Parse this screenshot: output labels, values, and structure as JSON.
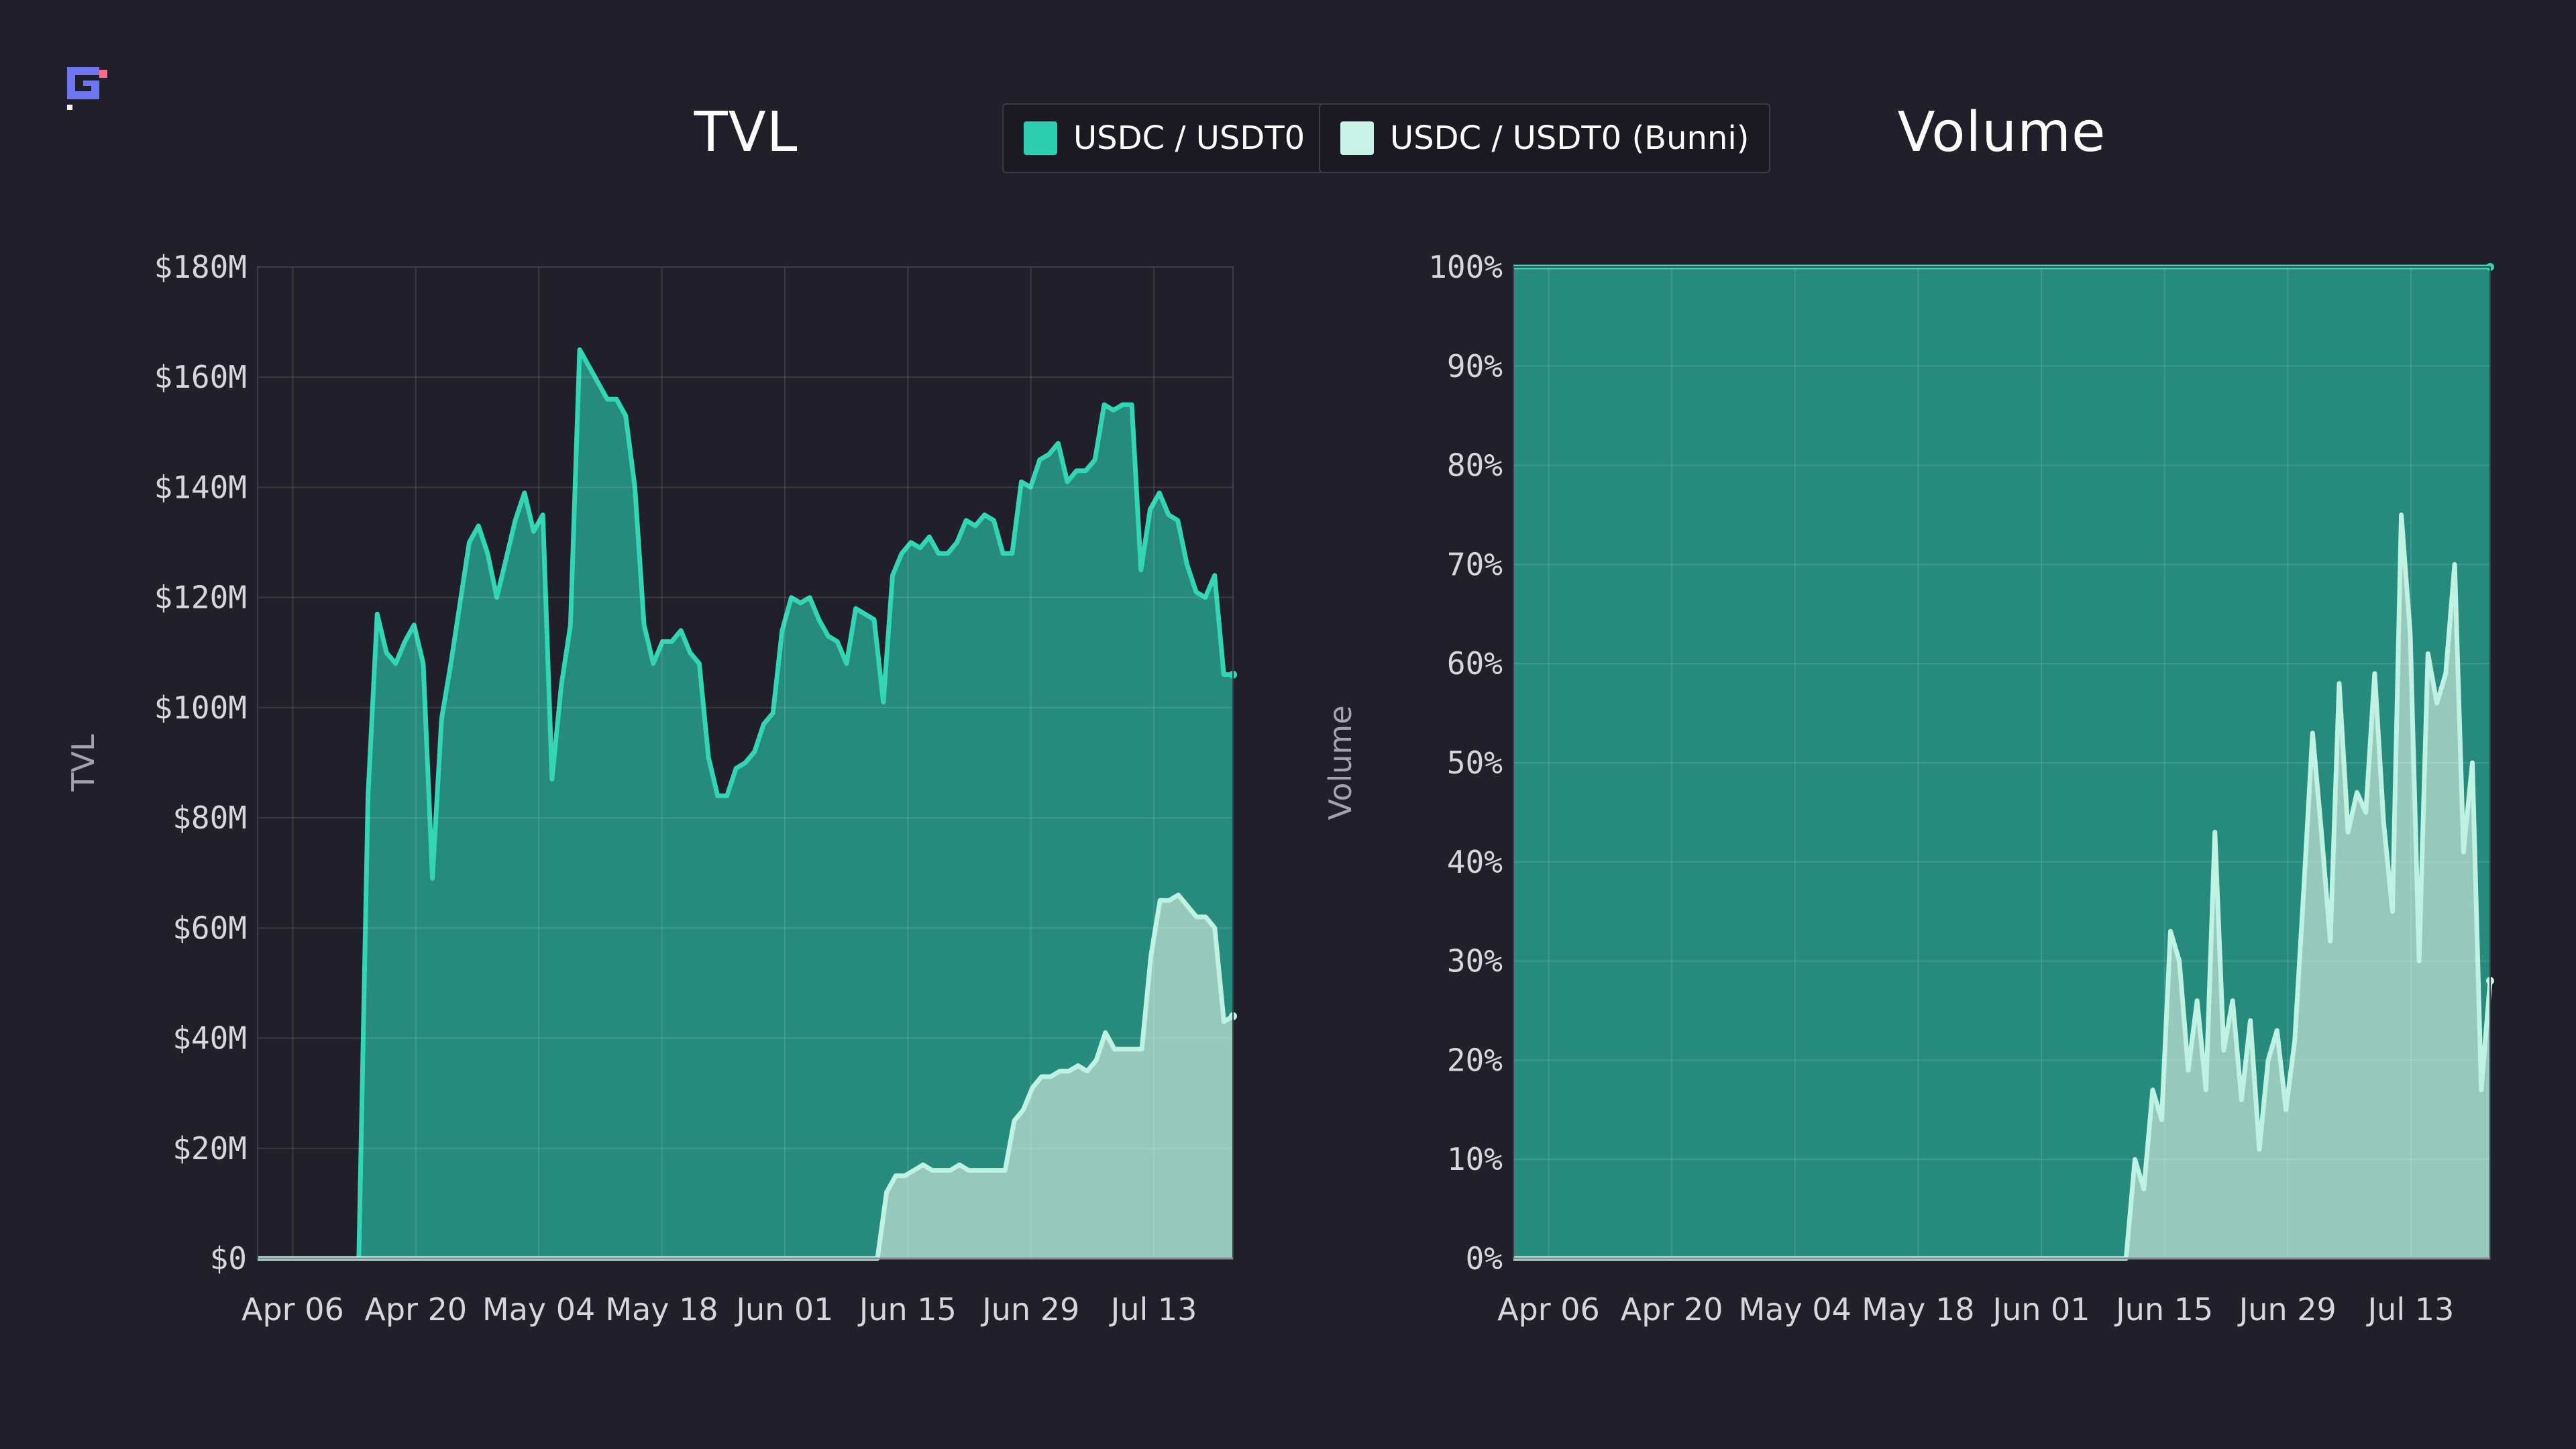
{
  "legend": [
    {
      "label": "USDC / USDT0",
      "color": "#2ecfb1"
    },
    {
      "label": "USDC / USDT0 (Bunni)",
      "color": "#c8f3e6"
    }
  ],
  "colors": {
    "primary_line": "#33d6b4",
    "primary_fill": "#268a7d",
    "secondary_line": "#bff2e3",
    "secondary_fill": "#9fcdc0",
    "grid": "#3e3d4c",
    "logo_blue": "#6d76f0",
    "logo_pink": "#ff6b8b"
  },
  "chart_data": [
    {
      "type": "area",
      "title": "TVL",
      "ylabel": "TVL",
      "xlabel": "",
      "ylim": [
        0,
        180
      ],
      "y_unit": "$M",
      "y_ticks": [
        "$0",
        "$20M",
        "$40M",
        "$60M",
        "$80M",
        "$100M",
        "$120M",
        "$140M",
        "$160M",
        "$180M"
      ],
      "x_ticks": [
        "Apr 06",
        "Apr 20",
        "May 04",
        "May 18",
        "Jun 01",
        "Jun 15",
        "Jun 29",
        "Jul 13"
      ],
      "x_range": [
        "Apr 02",
        "Jul 22"
      ],
      "grid": true,
      "series": [
        {
          "name": "USDC / USDT0",
          "stacked": false,
          "values": [
            0,
            0,
            0,
            0,
            0,
            0,
            0,
            0,
            0,
            0,
            0,
            0,
            84,
            117,
            110,
            108,
            112,
            115,
            108,
            69,
            98,
            108,
            119,
            130,
            133,
            128,
            120,
            127,
            134,
            139,
            132,
            135,
            87,
            104,
            115,
            165,
            162,
            159,
            156,
            156,
            153,
            140,
            115,
            108,
            112,
            112,
            114,
            110,
            108,
            91,
            84,
            84,
            89,
            90,
            92,
            97,
            99,
            114,
            120,
            119,
            120,
            116,
            113,
            112,
            108,
            118,
            117,
            116,
            101,
            124,
            128,
            130,
            129,
            131,
            128,
            128,
            130,
            134,
            133,
            135,
            134,
            128,
            128,
            141,
            140,
            145,
            146,
            148,
            141,
            143,
            143,
            145,
            155,
            154,
            155,
            155,
            125,
            136,
            139,
            135,
            134,
            126,
            121,
            120,
            124,
            106,
            106
          ]
        },
        {
          "name": "USDC / USDT0 (Bunni)",
          "stacked": false,
          "values": [
            0,
            0,
            0,
            0,
            0,
            0,
            0,
            0,
            0,
            0,
            0,
            0,
            0,
            0,
            0,
            0,
            0,
            0,
            0,
            0,
            0,
            0,
            0,
            0,
            0,
            0,
            0,
            0,
            0,
            0,
            0,
            0,
            0,
            0,
            0,
            0,
            0,
            0,
            0,
            0,
            0,
            0,
            0,
            0,
            0,
            0,
            0,
            0,
            0,
            0,
            0,
            0,
            0,
            0,
            0,
            0,
            0,
            0,
            0,
            0,
            0,
            0,
            0,
            0,
            0,
            0,
            0,
            0,
            0,
            12,
            15,
            15,
            16,
            17,
            16,
            16,
            16,
            17,
            16,
            16,
            16,
            16,
            16,
            25,
            27,
            31,
            33,
            33,
            34,
            34,
            35,
            34,
            36,
            41,
            38,
            38,
            38,
            38,
            55,
            65,
            65,
            66,
            64,
            62,
            62,
            60,
            43,
            44
          ]
        }
      ]
    },
    {
      "type": "area",
      "title": "Volume",
      "ylabel": "Volume",
      "xlabel": "",
      "ylim": [
        0,
        100
      ],
      "y_unit": "%",
      "y_ticks": [
        "0%",
        "10%",
        "20%",
        "30%",
        "40%",
        "50%",
        "60%",
        "70%",
        "80%",
        "90%",
        "100%"
      ],
      "x_ticks": [
        "Apr 06",
        "Apr 20",
        "May 04",
        "May 18",
        "Jun 01",
        "Jun 15",
        "Jun 29",
        "Jul 13"
      ],
      "x_range": [
        "Apr 02",
        "Jul 22"
      ],
      "grid": true,
      "stacked_percent": true,
      "series": [
        {
          "name": "USDC / USDT0",
          "values": [
            100,
            100,
            100,
            100,
            100,
            100,
            100,
            100,
            100,
            100,
            100,
            100,
            100,
            100,
            100,
            100,
            100,
            100,
            100,
            100,
            100,
            100,
            100,
            100,
            100,
            100,
            100,
            100,
            100,
            100,
            100,
            100,
            100,
            100,
            100,
            100,
            100,
            100,
            100,
            100,
            100,
            100,
            100,
            100,
            100,
            100,
            100,
            100,
            100,
            100,
            100,
            100,
            100,
            100,
            100,
            100,
            100,
            100,
            100,
            100,
            100,
            100,
            100,
            100,
            100,
            100,
            100,
            100,
            100,
            100,
            100,
            100,
            100,
            100,
            100,
            100,
            100,
            100,
            100,
            100,
            100,
            100,
            100,
            100,
            100,
            100,
            100,
            100,
            100,
            100,
            100,
            100,
            100,
            100,
            100,
            100,
            100,
            100,
            100,
            100,
            100,
            100,
            100,
            100,
            100,
            100,
            100,
            100,
            100,
            100,
            100,
            100,
            100
          ]
        },
        {
          "name": "USDC / USDT0 (Bunni)",
          "values": [
            0,
            0,
            0,
            0,
            0,
            0,
            0,
            0,
            0,
            0,
            0,
            0,
            0,
            0,
            0,
            0,
            0,
            0,
            0,
            0,
            0,
            0,
            0,
            0,
            0,
            0,
            0,
            0,
            0,
            0,
            0,
            0,
            0,
            0,
            0,
            0,
            0,
            0,
            0,
            0,
            0,
            0,
            0,
            0,
            0,
            0,
            0,
            0,
            0,
            0,
            0,
            0,
            0,
            0,
            0,
            0,
            0,
            0,
            0,
            0,
            0,
            0,
            0,
            0,
            0,
            0,
            0,
            0,
            0,
            0,
            10,
            7,
            17,
            14,
            33,
            30,
            19,
            26,
            17,
            43,
            21,
            26,
            16,
            24,
            11,
            20,
            23,
            15,
            22,
            37,
            53,
            43,
            32,
            58,
            43,
            47,
            45,
            59,
            44,
            35,
            75,
            63,
            30,
            61,
            56,
            59,
            70,
            41,
            50,
            17,
            28
          ]
        }
      ]
    }
  ]
}
